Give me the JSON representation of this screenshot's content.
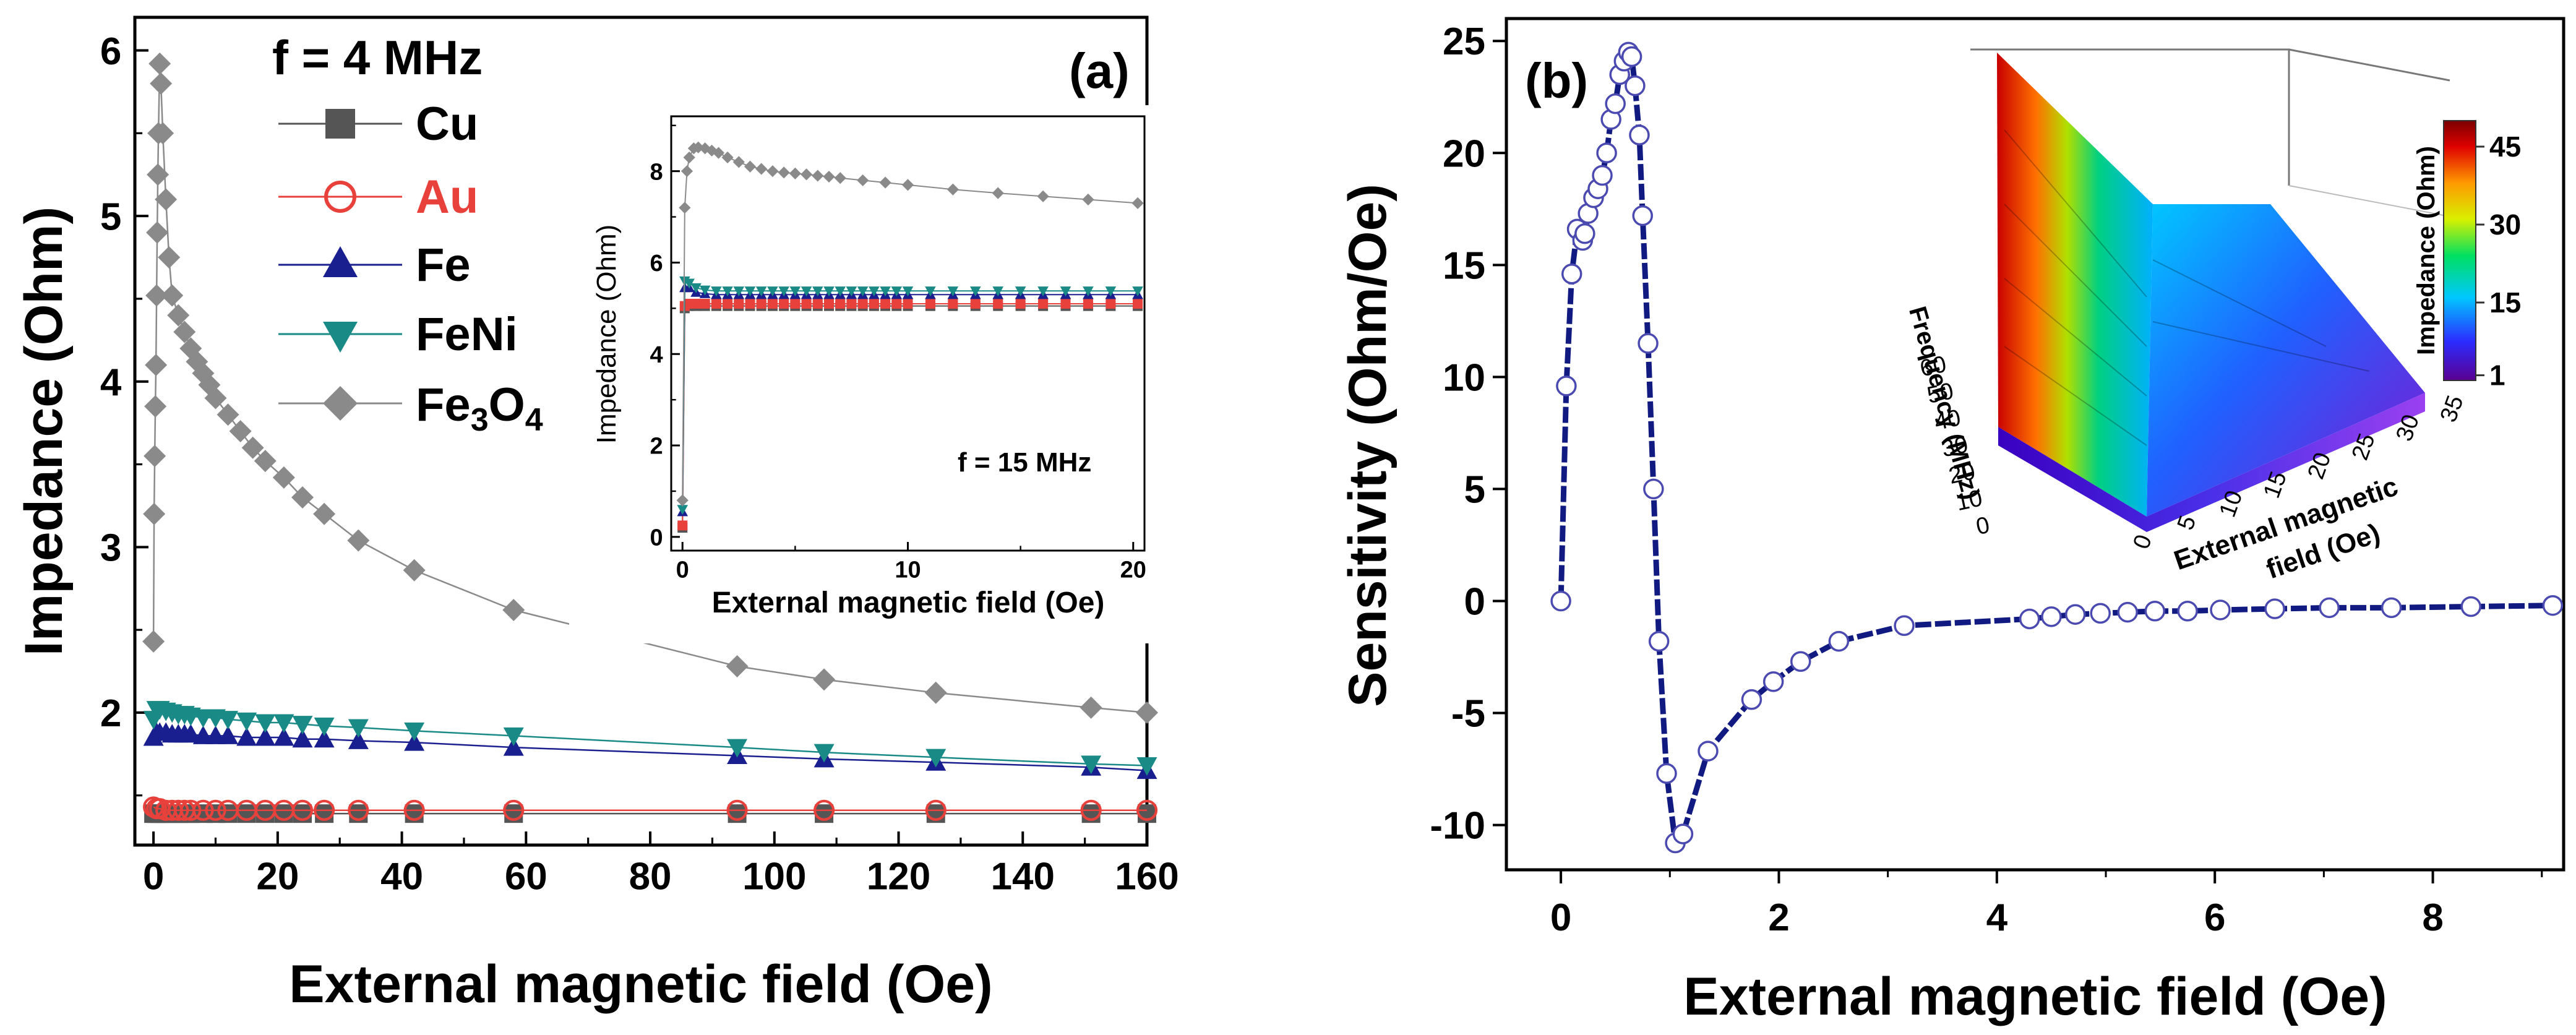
{
  "chart_data": [
    {
      "type": "scatter",
      "panel_label": "(a)",
      "annotation": "f = 4 MHz",
      "xlabel": "External magnetic field (Oe)",
      "ylabel": "Impedance (Ohm)",
      "xlim": [
        -3,
        160
      ],
      "ylim": [
        1.2,
        6.2
      ],
      "xticks": [
        "0",
        "20",
        "40",
        "60",
        "80",
        "100",
        "120",
        "140",
        "160"
      ],
      "yticks": [
        "2",
        "3",
        "4",
        "5",
        "6"
      ],
      "legend_position": "top-left",
      "series": [
        {
          "name": "Cu",
          "marker": "square",
          "color": "#555555",
          "x": [
            0,
            0.5,
            1,
            2,
            3,
            4,
            5,
            6,
            8,
            10,
            12,
            15,
            18,
            21,
            24,
            27.5,
            33,
            42,
            58,
            94,
            108,
            126,
            151,
            160
          ],
          "y": [
            1.39,
            1.39,
            1.39,
            1.39,
            1.39,
            1.39,
            1.39,
            1.39,
            1.39,
            1.39,
            1.39,
            1.39,
            1.39,
            1.39,
            1.39,
            1.39,
            1.39,
            1.39,
            1.39,
            1.39,
            1.39,
            1.39,
            1.39,
            1.39
          ]
        },
        {
          "name": "Au",
          "marker": "circle-open",
          "color": "#e8413c",
          "x": [
            0,
            0.5,
            1,
            2,
            3,
            4,
            5,
            6,
            8,
            10,
            12,
            15,
            18,
            21,
            24,
            27.5,
            33,
            42,
            58,
            94,
            108,
            126,
            151,
            160
          ],
          "y": [
            1.43,
            1.42,
            1.42,
            1.41,
            1.41,
            1.41,
            1.41,
            1.41,
            1.41,
            1.41,
            1.41,
            1.41,
            1.41,
            1.41,
            1.41,
            1.41,
            1.41,
            1.41,
            1.41,
            1.41,
            1.41,
            1.41,
            1.41,
            1.41
          ]
        },
        {
          "name": "Fe",
          "marker": "triangle-up",
          "color": "#1a1f8f",
          "x": [
            0,
            0.5,
            1,
            2,
            3,
            4,
            5,
            6,
            8,
            10,
            12,
            15,
            18,
            21,
            24,
            27.5,
            33,
            42,
            58,
            94,
            108,
            126,
            151,
            160
          ],
          "y": [
            1.85,
            1.88,
            1.88,
            1.88,
            1.87,
            1.87,
            1.87,
            1.87,
            1.86,
            1.86,
            1.86,
            1.85,
            1.85,
            1.85,
            1.84,
            1.84,
            1.83,
            1.82,
            1.79,
            1.74,
            1.72,
            1.7,
            1.67,
            1.65
          ]
        },
        {
          "name": "FeNi",
          "marker": "triangle-down",
          "color": "#1a8a86",
          "x": [
            0,
            0.5,
            1,
            2,
            3,
            4,
            5,
            6,
            8,
            10,
            12,
            15,
            18,
            21,
            24,
            27.5,
            33,
            42,
            58,
            94,
            108,
            126,
            151,
            160
          ],
          "y": [
            1.96,
            2.02,
            2.02,
            2.01,
            2.0,
            1.99,
            1.99,
            1.98,
            1.97,
            1.97,
            1.96,
            1.95,
            1.94,
            1.94,
            1.93,
            1.92,
            1.91,
            1.89,
            1.86,
            1.79,
            1.76,
            1.73,
            1.69,
            1.68
          ]
        },
        {
          "name": "Fe3O4",
          "marker": "diamond",
          "color": "#8a8a8a",
          "x": [
            0,
            0.1,
            0.2,
            0.3,
            0.4,
            0.5,
            0.6,
            0.7,
            0.8,
            1,
            1.2,
            1.5,
            2,
            2.5,
            3,
            4,
            5,
            6,
            7,
            8,
            9,
            10,
            12,
            14,
            16,
            18,
            21,
            24,
            27.5,
            33,
            42,
            58,
            94,
            108,
            126,
            151,
            160
          ],
          "y": [
            2.43,
            3.2,
            3.55,
            3.85,
            4.1,
            4.52,
            4.9,
            5.25,
            5.5,
            5.92,
            5.8,
            5.5,
            5.1,
            4.75,
            4.52,
            4.4,
            4.3,
            4.2,
            4.12,
            4.05,
            3.98,
            3.9,
            3.8,
            3.7,
            3.6,
            3.52,
            3.42,
            3.3,
            3.2,
            3.04,
            2.86,
            2.62,
            2.28,
            2.2,
            2.12,
            2.03,
            2.0
          ]
        }
      ],
      "inset": {
        "annotation": "f = 15 MHz",
        "xlabel": "External magnetic field (Oe)",
        "ylabel": "Impedance (Ohm)",
        "xlim": [
          -0.5,
          20.5
        ],
        "ylim": [
          -0.3,
          9.2
        ],
        "xticks": [
          "0",
          "10",
          "20"
        ],
        "yticks": [
          "0",
          "2",
          "4",
          "6",
          "8"
        ],
        "series": [
          {
            "name": "Cu",
            "marker": "square",
            "color": "#555555",
            "x": [
              0,
              0.1,
              0.3,
              0.6,
              1,
              1.5,
              2,
              2.5,
              3,
              3.5,
              4,
              4.5,
              5,
              5.5,
              6,
              6.5,
              7,
              7.5,
              8,
              8.5,
              9,
              9.5,
              10,
              11,
              12,
              13,
              14,
              15,
              16,
              17,
              18,
              19,
              20.2
            ],
            "y": [
              0.2,
              5.0,
              5.05,
              5.05,
              5.05,
              5.05,
              5.05,
              5.05,
              5.05,
              5.05,
              5.05,
              5.05,
              5.05,
              5.05,
              5.05,
              5.05,
              5.05,
              5.05,
              5.05,
              5.05,
              5.05,
              5.05,
              5.05,
              5.05,
              5.05,
              5.05,
              5.05,
              5.05,
              5.05,
              5.05,
              5.05,
              5.05,
              5.05
            ]
          },
          {
            "name": "Au",
            "marker": "square",
            "color": "#e8413c",
            "x": [
              0,
              0.1,
              0.3,
              0.6,
              1,
              1.5,
              2,
              2.5,
              3,
              3.5,
              4,
              4.5,
              5,
              5.5,
              6,
              6.5,
              7,
              7.5,
              8,
              8.5,
              9,
              9.5,
              10,
              11,
              12,
              13,
              14,
              15,
              16,
              17,
              18,
              19,
              20.2
            ],
            "y": [
              0.25,
              5.05,
              5.1,
              5.1,
              5.1,
              5.1,
              5.1,
              5.1,
              5.1,
              5.1,
              5.1,
              5.1,
              5.1,
              5.1,
              5.1,
              5.1,
              5.1,
              5.1,
              5.1,
              5.1,
              5.1,
              5.1,
              5.1,
              5.1,
              5.1,
              5.1,
              5.1,
              5.1,
              5.1,
              5.1,
              5.1,
              5.1,
              5.1
            ]
          },
          {
            "name": "Fe",
            "marker": "triangle-up",
            "color": "#1a1f8f",
            "x": [
              0,
              0.1,
              0.3,
              0.6,
              1,
              1.5,
              2,
              2.5,
              3,
              3.5,
              4,
              4.5,
              5,
              5.5,
              6,
              6.5,
              7,
              7.5,
              8,
              8.5,
              9,
              9.5,
              10,
              11,
              12,
              13,
              14,
              15,
              16,
              17,
              18,
              19,
              20.2
            ],
            "y": [
              0.55,
              5.45,
              5.45,
              5.35,
              5.32,
              5.3,
              5.3,
              5.3,
              5.3,
              5.3,
              5.3,
              5.3,
              5.3,
              5.3,
              5.3,
              5.3,
              5.3,
              5.3,
              5.3,
              5.3,
              5.3,
              5.3,
              5.3,
              5.3,
              5.3,
              5.3,
              5.3,
              5.3,
              5.3,
              5.3,
              5.3,
              5.3,
              5.3
            ]
          },
          {
            "name": "FeNi",
            "marker": "triangle-down",
            "color": "#1a8a86",
            "x": [
              0,
              0.1,
              0.3,
              0.6,
              1,
              1.5,
              2,
              2.5,
              3,
              3.5,
              4,
              4.5,
              5,
              5.5,
              6,
              6.5,
              7,
              7.5,
              8,
              8.5,
              9,
              9.5,
              10,
              11,
              12,
              13,
              14,
              15,
              16,
              17,
              18,
              19,
              20.2
            ],
            "y": [
              0.6,
              5.6,
              5.55,
              5.45,
              5.4,
              5.38,
              5.38,
              5.38,
              5.38,
              5.38,
              5.38,
              5.38,
              5.38,
              5.38,
              5.38,
              5.38,
              5.38,
              5.38,
              5.38,
              5.38,
              5.38,
              5.38,
              5.38,
              5.38,
              5.38,
              5.38,
              5.38,
              5.38,
              5.38,
              5.38,
              5.38,
              5.38,
              5.38
            ]
          },
          {
            "name": "Fe3O4",
            "marker": "diamond",
            "color": "#8a8a8a",
            "x": [
              0,
              0.1,
              0.2,
              0.3,
              0.5,
              0.7,
              1,
              1.3,
              1.6,
              2,
              2.5,
              3,
              3.5,
              4,
              4.5,
              5,
              5.5,
              6,
              6.5,
              7,
              8,
              9,
              10,
              12,
              14,
              16,
              18,
              20.2
            ],
            "y": [
              0.8,
              7.2,
              8.0,
              8.3,
              8.5,
              8.52,
              8.5,
              8.45,
              8.4,
              8.3,
              8.2,
              8.1,
              8.05,
              8.0,
              7.97,
              7.95,
              7.93,
              7.9,
              7.88,
              7.85,
              7.8,
              7.75,
              7.7,
              7.6,
              7.52,
              7.45,
              7.38,
              7.3
            ]
          }
        ]
      }
    },
    {
      "type": "line",
      "panel_label": "(b)",
      "xlabel": "External magnetic field (Oe)",
      "ylabel": "Sensitivity (Ohm/Oe)",
      "xlim": [
        -0.5,
        9.2
      ],
      "ylim": [
        -12,
        26
      ],
      "xticks": [
        "0",
        "2",
        "4",
        "6",
        "8"
      ],
      "yticks": [
        "-10",
        "-5",
        "0",
        "5",
        "10",
        "15",
        "20",
        "25"
      ],
      "line_color": "#101a80",
      "marker_color": "#4a4ab0",
      "series": [
        {
          "name": "",
          "x": [
            0,
            0.05,
            0.1,
            0.15,
            0.2,
            0.22,
            0.25,
            0.3,
            0.34,
            0.38,
            0.42,
            0.46,
            0.5,
            0.54,
            0.58,
            0.62,
            0.65,
            0.68,
            0.72,
            0.75,
            0.8,
            0.85,
            0.9,
            0.97,
            1.05,
            1.12,
            1.35,
            1.75,
            1.95,
            2.2,
            2.55,
            3.15,
            4.3,
            4.5,
            4.72,
            4.95,
            5.2,
            5.45,
            5.75,
            6.05,
            6.55,
            7.05,
            7.62,
            8.35,
            9.1
          ],
          "y": [
            0,
            9.6,
            14.6,
            16.6,
            16.1,
            16.4,
            17.3,
            18.0,
            18.4,
            19.0,
            20.0,
            21.5,
            22.2,
            23.5,
            24.1,
            24.5,
            24.3,
            23.0,
            20.8,
            17.2,
            11.5,
            5.0,
            -1.8,
            -7.7,
            -10.8,
            -10.4,
            -6.7,
            -4.4,
            -3.6,
            -2.7,
            -1.8,
            -1.1,
            -0.8,
            -0.7,
            -0.6,
            -0.55,
            -0.5,
            -0.45,
            -0.45,
            -0.4,
            -0.35,
            -0.3,
            -0.3,
            -0.25,
            -0.2
          ]
        }
      ],
      "inset_3d": {
        "type": "surface",
        "xlabel": "External magnetic field (Oe)",
        "ylabel": "Frequency (MHz)",
        "colorbar_label": "Impedance (Ohm)",
        "colorbar_ticks": [
          "1",
          "15",
          "30",
          "45"
        ],
        "x_ticks": [
          "0",
          "5",
          "10",
          "15",
          "20",
          "25",
          "30",
          "35"
        ],
        "y_ticks": [
          "0",
          "10",
          "20",
          "30",
          "40",
          "50",
          "60"
        ]
      }
    }
  ]
}
